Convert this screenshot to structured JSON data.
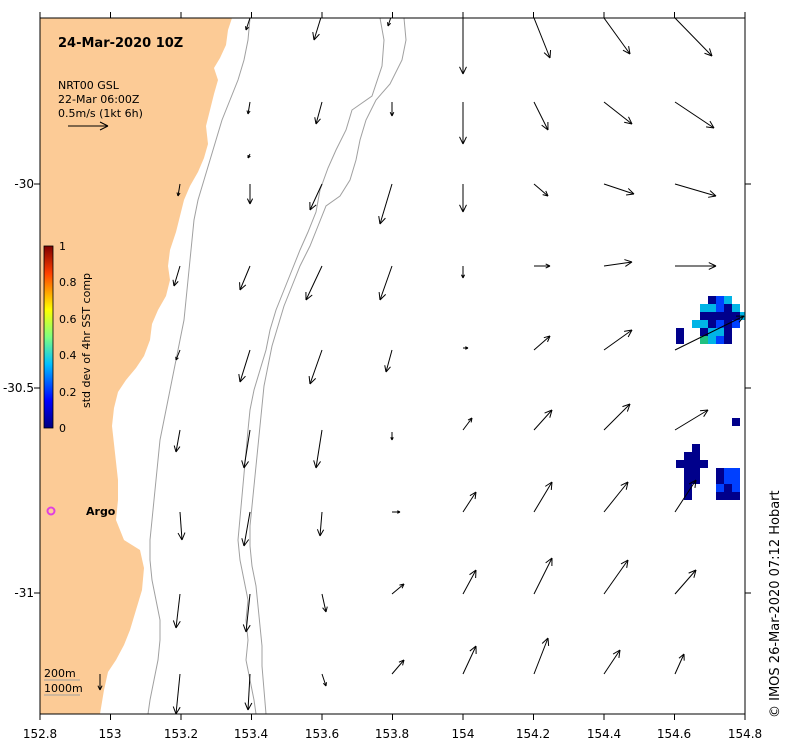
{
  "title": "24-Mar-2020 10Z",
  "legend": {
    "source": "NRT00 GSL",
    "date": "22-Mar 06:00Z",
    "scale": "0.5m/s (1kt 6h)"
  },
  "colorbar": {
    "label": "std dev of 4hr SST comp",
    "ticks": [
      "1",
      "0.8",
      "0.6",
      "0.4",
      "0.2",
      "0"
    ]
  },
  "argo_label": "Argo",
  "depth_labels": [
    "200m",
    "1000m"
  ],
  "credit": "© IMOS 26-Mar-2020 07:12 Hobart",
  "colors": {
    "land": "#fccb96",
    "contour": "#a0a0a0",
    "argo": "#e040e0",
    "sst_dark": "#00008b",
    "sst_blue": "#0040ff",
    "sst_cyan": "#00b4e6"
  },
  "axes": {
    "x_ticks": [
      "152.8",
      "153",
      "153.2",
      "153.4",
      "153.6",
      "153.8",
      "154",
      "154.2",
      "154.4",
      "154.6",
      "154.8"
    ],
    "y_ticks": [
      "-30",
      "-30.5",
      "-31"
    ]
  }
}
